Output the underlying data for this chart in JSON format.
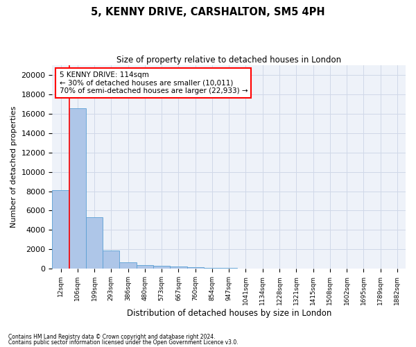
{
  "title": "5, KENNY DRIVE, CARSHALTON, SM5 4PH",
  "subtitle": "Size of property relative to detached houses in London",
  "xlabel": "Distribution of detached houses by size in London",
  "ylabel": "Number of detached properties",
  "bar_color": "#aec6e8",
  "bar_edge_color": "#5a9fd4",
  "grid_color": "#d0d8e8",
  "x_labels": [
    "12sqm",
    "106sqm",
    "199sqm",
    "293sqm",
    "386sqm",
    "480sqm",
    "573sqm",
    "667sqm",
    "760sqm",
    "854sqm",
    "947sqm",
    "1041sqm",
    "1134sqm",
    "1228sqm",
    "1321sqm",
    "1415sqm",
    "1508sqm",
    "1602sqm",
    "1695sqm",
    "1789sqm",
    "1882sqm"
  ],
  "bar_values": [
    8100,
    16600,
    5300,
    1850,
    650,
    350,
    270,
    220,
    180,
    90,
    50,
    30,
    20,
    15,
    10,
    8,
    5,
    5,
    3,
    2,
    1
  ],
  "red_line_x": 0.5,
  "annotation_text": "5 KENNY DRIVE: 114sqm\n← 30% of detached houses are smaller (10,011)\n70% of semi-detached houses are larger (22,933) →",
  "annotation_box_color": "white",
  "annotation_box_edge_color": "red",
  "ylim": [
    0,
    21000
  ],
  "yticks": [
    0,
    2000,
    4000,
    6000,
    8000,
    10000,
    12000,
    14000,
    16000,
    18000,
    20000
  ],
  "footer1": "Contains HM Land Registry data © Crown copyright and database right 2024.",
  "footer2": "Contains public sector information licensed under the Open Government Licence v3.0.",
  "background_color": "#eef2f9",
  "fig_width": 6.0,
  "fig_height": 5.0,
  "dpi": 100
}
